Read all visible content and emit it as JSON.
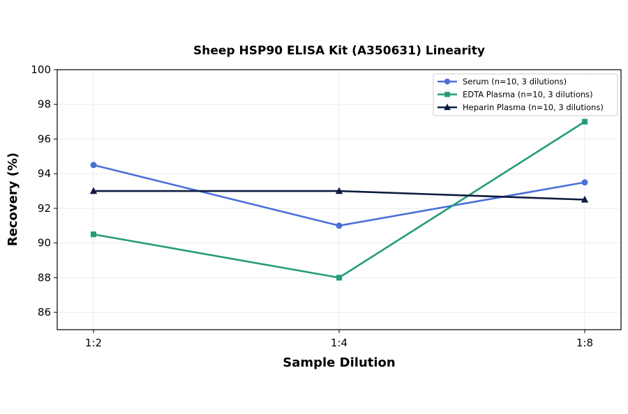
{
  "chart_data": {
    "type": "line",
    "title": "Sheep HSP90 ELISA Kit (A350631) Linearity",
    "xlabel": "Sample Dilution",
    "ylabel": "Recovery (%)",
    "categories": [
      "1:2",
      "1:4",
      "1:8"
    ],
    "ylim": [
      85,
      100
    ],
    "yticks": [
      86,
      88,
      90,
      92,
      94,
      96,
      98,
      100
    ],
    "grid": true,
    "legend_position": "top-right",
    "series": [
      {
        "name": "Serum (n=10, 3 dilutions)",
        "values": [
          94.5,
          91.0,
          93.5
        ],
        "color": "#4a6fd8",
        "marker": "circle"
      },
      {
        "name": "EDTA Plasma (n=10, 3 dilutions)",
        "values": [
          90.5,
          88.0,
          97.0
        ],
        "color": "#239b7a",
        "marker": "square"
      },
      {
        "name": "Heparin Plasma (n=10, 3 dilutions)",
        "values": [
          93.0,
          93.0,
          92.5
        ],
        "color": "#0e1a40",
        "marker": "triangle"
      }
    ]
  }
}
